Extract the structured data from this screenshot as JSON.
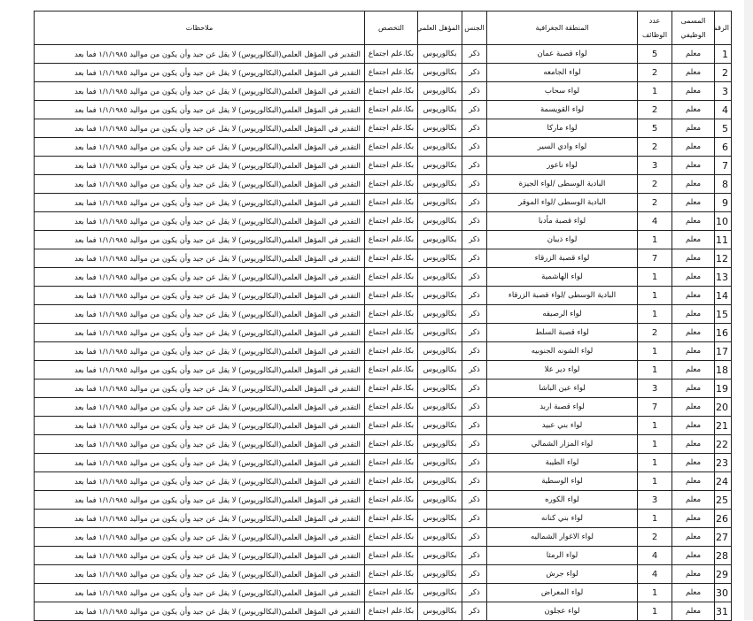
{
  "headers": {
    "number": "الرقم",
    "title": "المسمى الوظيفي",
    "count": "عدد الوظائف",
    "region": "المنطقة الجغرافية",
    "gender": "الجنس",
    "qualification": "المؤهل العلمي",
    "specialization": "التخصص",
    "notes": "ملاحظات"
  },
  "common": {
    "title": "معلم",
    "gender": "ذكر",
    "qualification": "بكالوريوس",
    "specialization": "بكا.علم اجتماع",
    "notes": "التقدير في المؤهل العلمي(البكالوريوس) لا يقل عن جيد وأن يكون من مواليد ١/١/١٩٨٥ فما بعد"
  },
  "rows": [
    {
      "n": "1",
      "region": "لواء قصبة عمان",
      "count": "5"
    },
    {
      "n": "2",
      "region": "لواء الجامعه",
      "count": "2"
    },
    {
      "n": "3",
      "region": "لواء سحاب",
      "count": "1"
    },
    {
      "n": "4",
      "region": "لواء القويسمة",
      "count": "2"
    },
    {
      "n": "5",
      "region": "لواء ماركا",
      "count": "5"
    },
    {
      "n": "6",
      "region": "لواء وادي السير",
      "count": "2"
    },
    {
      "n": "7",
      "region": "لواء ناعور",
      "count": "3"
    },
    {
      "n": "8",
      "region": "البادية الوسطى /لواء الجيزة",
      "count": "2"
    },
    {
      "n": "9",
      "region": "البادية الوسطى /لواء الموقر",
      "count": "2"
    },
    {
      "n": "10",
      "region": "لواء قصبة مأدبا",
      "count": "4"
    },
    {
      "n": "11",
      "region": "لواء ذيبان",
      "count": "1"
    },
    {
      "n": "12",
      "region": "لواء قصبة الزرقاء",
      "count": "7"
    },
    {
      "n": "13",
      "region": "لواء الهاشمية",
      "count": "1"
    },
    {
      "n": "14",
      "region": "البادية الوسطى /لواء قصبة الزرقاء",
      "count": "1"
    },
    {
      "n": "15",
      "region": "لواء الرصيفه",
      "count": "1"
    },
    {
      "n": "16",
      "region": "لواء قصبة السلط",
      "count": "2"
    },
    {
      "n": "17",
      "region": "لواء الشونه الجنوبيه",
      "count": "1"
    },
    {
      "n": "18",
      "region": "لواء دير علا",
      "count": "1"
    },
    {
      "n": "19",
      "region": "لواء عين الباشا",
      "count": "3"
    },
    {
      "n": "20",
      "region": "لواء قصبة اربد",
      "count": "7"
    },
    {
      "n": "21",
      "region": "لواء بني عبيد",
      "count": "1"
    },
    {
      "n": "22",
      "region": "لواء المزار الشمالي",
      "count": "1"
    },
    {
      "n": "23",
      "region": "لواء الطيبة",
      "count": "1"
    },
    {
      "n": "24",
      "region": "لواء الوسطية",
      "count": "1"
    },
    {
      "n": "25",
      "region": "لواء الكوره",
      "count": "3"
    },
    {
      "n": "26",
      "region": "لواء بني كنانه",
      "count": "1"
    },
    {
      "n": "27",
      "region": "لواء الاغوار الشماليه",
      "count": "2"
    },
    {
      "n": "28",
      "region": "لواء الرمثا",
      "count": "4"
    },
    {
      "n": "29",
      "region": "لواء جرش",
      "count": "4"
    },
    {
      "n": "30",
      "region": "لواء المعراض",
      "count": "1"
    },
    {
      "n": "31",
      "region": "لواء عجلون",
      "count": "1"
    }
  ]
}
